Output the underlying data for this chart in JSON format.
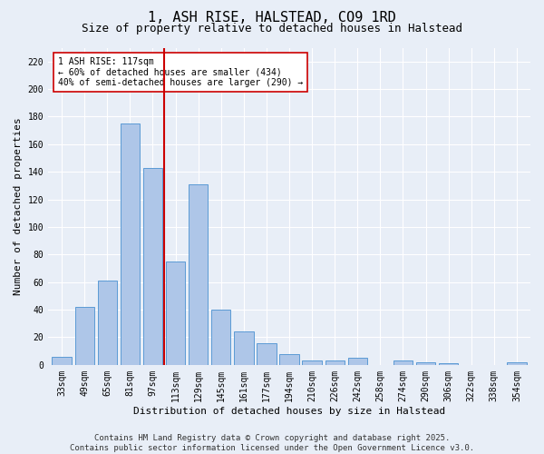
{
  "title": "1, ASH RISE, HALSTEAD, CO9 1RD",
  "subtitle": "Size of property relative to detached houses in Halstead",
  "xlabel": "Distribution of detached houses by size in Halstead",
  "ylabel": "Number of detached properties",
  "categories": [
    "33sqm",
    "49sqm",
    "65sqm",
    "81sqm",
    "97sqm",
    "113sqm",
    "129sqm",
    "145sqm",
    "161sqm",
    "177sqm",
    "194sqm",
    "210sqm",
    "226sqm",
    "242sqm",
    "258sqm",
    "274sqm",
    "290sqm",
    "306sqm",
    "322sqm",
    "338sqm",
    "354sqm"
  ],
  "values": [
    6,
    42,
    61,
    175,
    143,
    75,
    131,
    40,
    24,
    16,
    8,
    3,
    3,
    5,
    0,
    3,
    2,
    1,
    0,
    0,
    2
  ],
  "bar_color": "#aec6e8",
  "bar_edge_color": "#5b9bd5",
  "vline_x_idx": 5,
  "vline_color": "#cc0000",
  "annotation_text": "1 ASH RISE: 117sqm\n← 60% of detached houses are smaller (434)\n40% of semi-detached houses are larger (290) →",
  "annotation_box_color": "#ffffff",
  "annotation_box_edge": "#cc0000",
  "ylim": [
    0,
    230
  ],
  "yticks": [
    0,
    20,
    40,
    60,
    80,
    100,
    120,
    140,
    160,
    180,
    200,
    220
  ],
  "footer": "Contains HM Land Registry data © Crown copyright and database right 2025.\nContains public sector information licensed under the Open Government Licence v3.0.",
  "bg_color": "#e8eef7",
  "grid_color": "#ffffff",
  "title_fontsize": 11,
  "subtitle_fontsize": 9,
  "axis_label_fontsize": 8,
  "tick_fontsize": 7,
  "footer_fontsize": 6.5
}
